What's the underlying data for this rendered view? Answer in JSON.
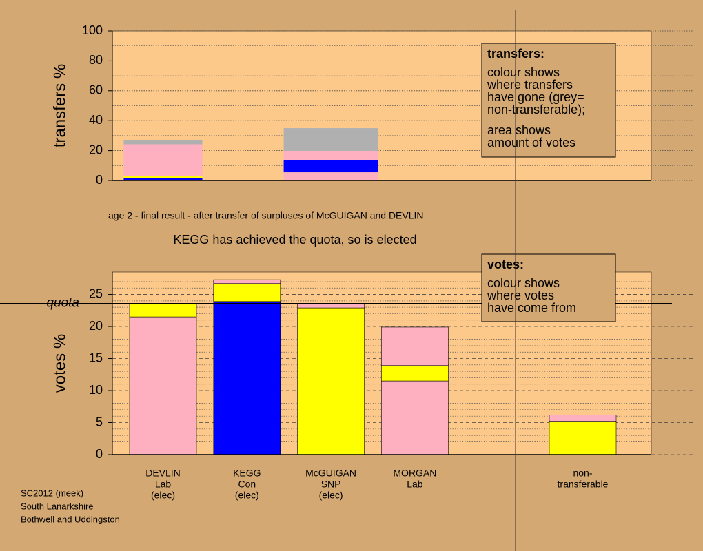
{
  "stage_text": "age 2 - final result - after transfer of surpluses of McGUIGAN and DEVLIN",
  "result_text": "KEGG has achieved the quota, so is elected",
  "footer": [
    "SC2012 (meek)",
    "South Lanarkshire",
    "Bothwell and Uddingston"
  ],
  "chart_data": [
    {
      "type": "bar",
      "stacked": true,
      "ylabel": "transfers %",
      "ylim": [
        0,
        100
      ],
      "yticks": [
        0,
        20,
        40,
        60,
        80,
        100
      ],
      "minor_yticks": [
        10,
        30,
        50,
        70,
        90
      ],
      "grid": true,
      "legend": {
        "title": "transfers:",
        "paragraphs": [
          [
            "colour shows",
            "where transfers",
            "have gone (grey=",
            "non-transferable);"
          ],
          [
            "area shows",
            "amount of votes"
          ]
        ]
      },
      "bars": [
        {
          "segments": [
            {
              "color": "#0000ff",
              "value": 1.4
            },
            {
              "color": "#ffff00",
              "value": 1.8
            },
            {
              "color": "#ffb0c0",
              "value": 21.0
            },
            {
              "color": "#b0b0b0",
              "value": 3.0
            }
          ]
        },
        {
          "segments": []
        },
        {
          "segments": [
            {
              "color": "#ffb0c0",
              "value": 5.5
            },
            {
              "color": "#0000ff",
              "value": 7.9
            },
            {
              "color": "#ffb0c0",
              "value": 6.4
            },
            {
              "color": "#b0b0b0",
              "value": 15.2
            }
          ]
        },
        {
          "segments": []
        },
        {
          "segments": []
        },
        {
          "segments": []
        }
      ]
    },
    {
      "type": "bar",
      "stacked": true,
      "ylabel": "votes %",
      "ylim": [
        0,
        28.5
      ],
      "yticks": [
        0,
        5,
        10,
        15,
        20,
        25
      ],
      "minor_yticks": [
        1,
        2,
        3,
        4,
        6,
        7,
        8,
        9,
        11,
        12,
        13,
        14,
        16,
        17,
        18,
        19,
        21,
        22,
        23,
        24,
        26,
        27,
        28
      ],
      "grid": true,
      "quota": 23.6,
      "quota_label": "quota",
      "legend": {
        "title": "votes:",
        "paragraphs": [
          [
            "colour shows",
            "where votes",
            "have come from"
          ]
        ]
      },
      "categories": [
        [
          "DEVLIN",
          "Lab",
          "(elec)"
        ],
        [
          "KEGG",
          "Con",
          "(elec)"
        ],
        [
          "McGUIGAN",
          "SNP",
          "(elec)"
        ],
        [
          "MORGAN",
          "Lab"
        ],
        null,
        [
          "non-",
          "transferable"
        ]
      ],
      "bars": [
        {
          "segments": [
            {
              "color": "#ffb0c0",
              "value": 21.5
            },
            {
              "color": "#ffff00",
              "value": 2.1
            }
          ]
        },
        {
          "segments": [
            {
              "color": "#0000ff",
              "value": 23.9
            },
            {
              "color": "#ffff00",
              "value": 2.8
            },
            {
              "color": "#ffb0c0",
              "value": 0.6
            }
          ]
        },
        {
          "segments": [
            {
              "color": "#ffff00",
              "value": 22.9
            },
            {
              "color": "#ffb0c0",
              "value": 0.7
            }
          ]
        },
        {
          "segments": [
            {
              "color": "#ffb0c0",
              "value": 11.5
            },
            {
              "color": "#ffff00",
              "value": 2.4
            },
            {
              "color": "#ffb0c0",
              "value": 6.0
            }
          ]
        },
        {
          "segments": []
        },
        {
          "segments": [
            {
              "color": "#ffff00",
              "value": 5.2
            },
            {
              "color": "#ffb0c0",
              "value": 1.0
            }
          ]
        }
      ]
    }
  ]
}
